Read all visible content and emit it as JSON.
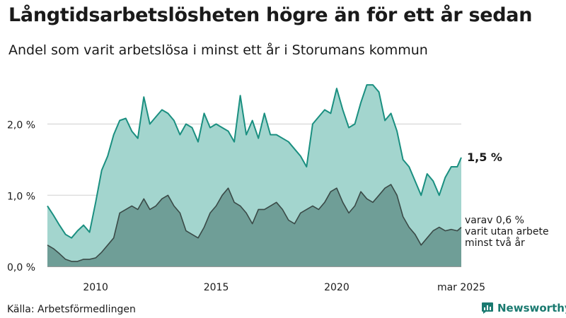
{
  "title": "Långtidsarbetslösheten högre än för ett år sedan",
  "subtitle": "Andel som varit arbetslösa i minst ett år i Storumans kommun",
  "source": "Källa: Arbetsförmedlingen",
  "brand": "Newsworthy",
  "colors": {
    "total_fill": "#a3d5ce",
    "total_line": "#1a8f80",
    "sub_fill": "#6f9e97",
    "sub_line": "#3a4a47",
    "grid": "#d0d0d0",
    "brand": "#1a7a70"
  },
  "chart_data": {
    "type": "area",
    "title": "Långtidsarbetslösheten högre än för ett år sedan",
    "subtitle": "Andel som varit arbetslösa i minst ett år i Storumans kommun",
    "xlabel": "",
    "ylabel": "",
    "x_range": [
      "2008-01",
      "2025-03"
    ],
    "ylim": [
      0,
      2.7
    ],
    "y_ticks": [
      0,
      1.0,
      2.0
    ],
    "y_tick_labels": [
      "0,0 %",
      "1,0 %",
      "2,0 %"
    ],
    "x_tick_labels": [
      "2010",
      "2015",
      "2020",
      "mar 2025"
    ],
    "x_tick_dates": [
      "2010-01",
      "2015-01",
      "2020-01",
      "2025-03"
    ],
    "grid": true,
    "series": [
      {
        "name": "",
        "end_label": "1,5 %",
        "points": [
          [
            "2008-01",
            0.85
          ],
          [
            "2008-04",
            0.72
          ],
          [
            "2008-07",
            0.58
          ],
          [
            "2008-10",
            0.45
          ],
          [
            "2009-01",
            0.4
          ],
          [
            "2009-04",
            0.5
          ],
          [
            "2009-07",
            0.58
          ],
          [
            "2009-10",
            0.48
          ],
          [
            "2010-01",
            0.9
          ],
          [
            "2010-04",
            1.35
          ],
          [
            "2010-07",
            1.55
          ],
          [
            "2010-10",
            1.85
          ],
          [
            "2011-01",
            2.05
          ],
          [
            "2011-04",
            2.08
          ],
          [
            "2011-07",
            1.9
          ],
          [
            "2011-10",
            1.8
          ],
          [
            "2012-01",
            2.38
          ],
          [
            "2012-04",
            2.0
          ],
          [
            "2012-07",
            2.1
          ],
          [
            "2012-10",
            2.2
          ],
          [
            "2013-01",
            2.15
          ],
          [
            "2013-04",
            2.05
          ],
          [
            "2013-07",
            1.85
          ],
          [
            "2013-10",
            2.0
          ],
          [
            "2014-01",
            1.95
          ],
          [
            "2014-04",
            1.75
          ],
          [
            "2014-07",
            2.15
          ],
          [
            "2014-10",
            1.95
          ],
          [
            "2015-01",
            2.0
          ],
          [
            "2015-04",
            1.95
          ],
          [
            "2015-07",
            1.9
          ],
          [
            "2015-10",
            1.75
          ],
          [
            "2016-01",
            2.4
          ],
          [
            "2016-04",
            1.85
          ],
          [
            "2016-07",
            2.05
          ],
          [
            "2016-10",
            1.8
          ],
          [
            "2017-01",
            2.15
          ],
          [
            "2017-04",
            1.85
          ],
          [
            "2017-07",
            1.85
          ],
          [
            "2017-10",
            1.8
          ],
          [
            "2018-01",
            1.75
          ],
          [
            "2018-04",
            1.65
          ],
          [
            "2018-07",
            1.55
          ],
          [
            "2018-10",
            1.4
          ],
          [
            "2019-01",
            2.0
          ],
          [
            "2019-04",
            2.1
          ],
          [
            "2019-07",
            2.2
          ],
          [
            "2019-10",
            2.15
          ],
          [
            "2020-01",
            2.5
          ],
          [
            "2020-04",
            2.2
          ],
          [
            "2020-07",
            1.95
          ],
          [
            "2020-10",
            2.0
          ],
          [
            "2021-01",
            2.3
          ],
          [
            "2021-04",
            2.55
          ],
          [
            "2021-07",
            2.55
          ],
          [
            "2021-10",
            2.45
          ],
          [
            "2022-01",
            2.05
          ],
          [
            "2022-04",
            2.15
          ],
          [
            "2022-07",
            1.9
          ],
          [
            "2022-10",
            1.5
          ],
          [
            "2023-01",
            1.4
          ],
          [
            "2023-04",
            1.2
          ],
          [
            "2023-07",
            1.0
          ],
          [
            "2023-10",
            1.3
          ],
          [
            "2024-01",
            1.2
          ],
          [
            "2024-04",
            1.0
          ],
          [
            "2024-07",
            1.25
          ],
          [
            "2024-10",
            1.4
          ],
          [
            "2025-01",
            1.4
          ],
          [
            "2025-03",
            1.53
          ]
        ]
      },
      {
        "name": "",
        "end_label": [
          "varav 0,6 %",
          "varit utan arbete",
          "minst två år"
        ],
        "points": [
          [
            "2008-01",
            0.3
          ],
          [
            "2008-04",
            0.25
          ],
          [
            "2008-07",
            0.18
          ],
          [
            "2008-10",
            0.1
          ],
          [
            "2009-01",
            0.07
          ],
          [
            "2009-04",
            0.07
          ],
          [
            "2009-07",
            0.1
          ],
          [
            "2009-10",
            0.1
          ],
          [
            "2010-01",
            0.12
          ],
          [
            "2010-04",
            0.2
          ],
          [
            "2010-07",
            0.3
          ],
          [
            "2010-10",
            0.4
          ],
          [
            "2011-01",
            0.75
          ],
          [
            "2011-04",
            0.8
          ],
          [
            "2011-07",
            0.85
          ],
          [
            "2011-10",
            0.8
          ],
          [
            "2012-01",
            0.95
          ],
          [
            "2012-04",
            0.8
          ],
          [
            "2012-07",
            0.85
          ],
          [
            "2012-10",
            0.95
          ],
          [
            "2013-01",
            1.0
          ],
          [
            "2013-04",
            0.85
          ],
          [
            "2013-07",
            0.75
          ],
          [
            "2013-10",
            0.5
          ],
          [
            "2014-01",
            0.45
          ],
          [
            "2014-04",
            0.4
          ],
          [
            "2014-07",
            0.55
          ],
          [
            "2014-10",
            0.75
          ],
          [
            "2015-01",
            0.85
          ],
          [
            "2015-04",
            1.0
          ],
          [
            "2015-07",
            1.1
          ],
          [
            "2015-10",
            0.9
          ],
          [
            "2016-01",
            0.85
          ],
          [
            "2016-04",
            0.75
          ],
          [
            "2016-07",
            0.6
          ],
          [
            "2016-10",
            0.8
          ],
          [
            "2017-01",
            0.8
          ],
          [
            "2017-04",
            0.85
          ],
          [
            "2017-07",
            0.9
          ],
          [
            "2017-10",
            0.8
          ],
          [
            "2018-01",
            0.65
          ],
          [
            "2018-04",
            0.6
          ],
          [
            "2018-07",
            0.75
          ],
          [
            "2018-10",
            0.8
          ],
          [
            "2019-01",
            0.85
          ],
          [
            "2019-04",
            0.8
          ],
          [
            "2019-07",
            0.9
          ],
          [
            "2019-10",
            1.05
          ],
          [
            "2020-01",
            1.1
          ],
          [
            "2020-04",
            0.9
          ],
          [
            "2020-07",
            0.75
          ],
          [
            "2020-10",
            0.85
          ],
          [
            "2021-01",
            1.05
          ],
          [
            "2021-04",
            0.95
          ],
          [
            "2021-07",
            0.9
          ],
          [
            "2021-10",
            1.0
          ],
          [
            "2022-01",
            1.1
          ],
          [
            "2022-04",
            1.15
          ],
          [
            "2022-07",
            1.0
          ],
          [
            "2022-10",
            0.7
          ],
          [
            "2023-01",
            0.55
          ],
          [
            "2023-04",
            0.45
          ],
          [
            "2023-07",
            0.3
          ],
          [
            "2023-10",
            0.4
          ],
          [
            "2024-01",
            0.5
          ],
          [
            "2024-04",
            0.55
          ],
          [
            "2024-07",
            0.5
          ],
          [
            "2024-10",
            0.52
          ],
          [
            "2025-01",
            0.5
          ],
          [
            "2025-03",
            0.55
          ]
        ]
      }
    ]
  }
}
